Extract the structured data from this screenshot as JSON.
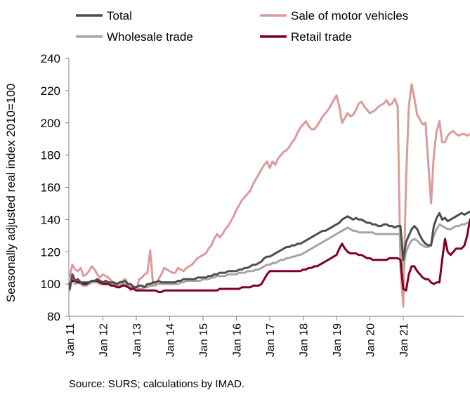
{
  "chart_data": {
    "type": "line",
    "title": "",
    "xlabel": "",
    "ylabel": "Seasonally adjusted real index 2010=100",
    "ylim": [
      80,
      240
    ],
    "yticks": [
      80,
      100,
      120,
      140,
      160,
      180,
      200,
      220,
      240
    ],
    "xticks": [
      "Jan 11",
      "Jan 12",
      "Jan 13",
      "Jan 14",
      "Jan 15",
      "Jan 16",
      "Jan 17",
      "Jan 18",
      "Jan 19",
      "Jan 20",
      "Jan 21"
    ],
    "x_start": "Jan 11",
    "grid": false,
    "legend_position": "top",
    "source": "Source: SURS; calculations by IMAD.",
    "series": [
      {
        "name": "Total",
        "color": "#4d4d4d",
        "values": [
          97,
          106,
          102,
          103,
          101,
          101,
          101,
          101,
          102,
          102,
          103,
          102,
          101,
          102,
          101,
          101,
          101,
          100,
          101,
          101,
          102,
          100,
          100,
          98,
          98,
          99,
          99,
          98,
          100,
          100,
          101,
          101,
          102,
          101,
          101,
          101,
          101,
          101,
          101,
          102,
          102,
          103,
          103,
          103,
          103,
          103,
          104,
          104,
          104,
          104,
          105,
          105,
          106,
          106,
          107,
          107,
          107,
          108,
          108,
          108,
          108,
          109,
          109,
          110,
          110,
          111,
          112,
          112,
          113,
          114,
          116,
          117,
          117,
          118,
          119,
          120,
          121,
          122,
          123,
          123,
          124,
          124,
          125,
          125,
          126,
          127,
          128,
          129,
          130,
          131,
          132,
          133,
          133,
          134,
          135,
          136,
          137,
          138,
          140,
          141,
          142,
          141,
          140,
          141,
          140,
          140,
          139,
          138,
          138,
          137,
          137,
          136,
          136,
          137,
          137,
          136,
          136,
          135,
          136,
          136,
          115,
          126,
          130,
          134,
          136,
          134,
          130,
          127,
          125,
          124,
          124,
          136,
          141,
          144,
          140,
          141,
          139,
          140,
          141,
          142,
          143,
          144,
          143,
          144,
          145,
          145
        ]
      },
      {
        "name": "Sale of motor vehicles",
        "color": "#dc9b9b",
        "values": [
          104,
          112,
          109,
          108,
          110,
          105,
          106,
          108,
          111,
          109,
          106,
          104,
          106,
          105,
          104,
          102,
          100,
          99,
          101,
          102,
          103,
          100,
          96,
          99,
          96,
          103,
          104,
          106,
          107,
          121,
          100,
          99,
          103,
          106,
          110,
          109,
          108,
          107,
          107,
          110,
          109,
          108,
          110,
          111,
          112,
          114,
          116,
          117,
          118,
          119,
          122,
          124,
          128,
          131,
          129,
          131,
          134,
          136,
          139,
          142,
          146,
          149,
          152,
          154,
          156,
          158,
          162,
          165,
          168,
          171,
          174,
          176,
          172,
          176,
          174,
          178,
          180,
          182,
          183,
          185,
          188,
          190,
          194,
          197,
          199,
          201,
          198,
          196,
          196,
          198,
          201,
          204,
          206,
          208,
          211,
          214,
          217,
          210,
          200,
          203,
          206,
          204,
          205,
          208,
          212,
          213,
          210,
          208,
          206,
          207,
          208,
          210,
          211,
          212,
          214,
          211,
          212,
          215,
          210,
          110,
          86,
          165,
          210,
          224,
          215,
          205,
          202,
          199,
          200,
          175,
          150,
          180,
          195,
          201,
          188,
          188,
          192,
          194,
          195,
          193,
          192,
          193,
          193,
          192,
          193,
          194
        ]
      },
      {
        "name": "Wholesale trade",
        "color": "#a6a6a6",
        "values": [
          96,
          103,
          100,
          101,
          100,
          99,
          99,
          100,
          101,
          101,
          101,
          100,
          101,
          101,
          100,
          100,
          100,
          99,
          99,
          100,
          100,
          99,
          98,
          97,
          97,
          97,
          97,
          98,
          98,
          99,
          99,
          100,
          100,
          100,
          100,
          100,
          100,
          100,
          100,
          100,
          101,
          101,
          102,
          102,
          102,
          102,
          102,
          102,
          103,
          103,
          103,
          104,
          104,
          105,
          105,
          105,
          105,
          106,
          106,
          106,
          106,
          107,
          107,
          107,
          108,
          108,
          108,
          109,
          109,
          110,
          111,
          112,
          112,
          113,
          113,
          114,
          115,
          115,
          116,
          116,
          117,
          117,
          118,
          118,
          119,
          120,
          121,
          122,
          123,
          124,
          125,
          126,
          127,
          128,
          129,
          130,
          131,
          132,
          133,
          134,
          135,
          134,
          133,
          133,
          132,
          132,
          132,
          132,
          132,
          132,
          131,
          131,
          131,
          131,
          131,
          131,
          131,
          131,
          131,
          131,
          110,
          120,
          124,
          127,
          128,
          127,
          125,
          124,
          123,
          123,
          124,
          130,
          134,
          137,
          136,
          135,
          134,
          134,
          135,
          136,
          136,
          137,
          137,
          138,
          138,
          138
        ]
      },
      {
        "name": "Retail trade",
        "color": "#800020",
        "values": [
          100,
          102,
          102,
          101,
          101,
          100,
          100,
          101,
          102,
          102,
          102,
          101,
          100,
          100,
          100,
          99,
          99,
          98,
          98,
          99,
          99,
          98,
          97,
          97,
          96,
          96,
          96,
          96,
          96,
          96,
          96,
          96,
          95,
          95,
          96,
          96,
          96,
          96,
          96,
          96,
          96,
          96,
          96,
          96,
          96,
          96,
          96,
          96,
          96,
          96,
          96,
          96,
          96,
          96,
          97,
          97,
          97,
          97,
          97,
          97,
          97,
          97,
          98,
          98,
          98,
          98,
          99,
          99,
          99,
          100,
          103,
          106,
          108,
          108,
          108,
          108,
          108,
          108,
          108,
          108,
          108,
          108,
          108,
          108,
          109,
          109,
          110,
          110,
          111,
          111,
          112,
          113,
          114,
          115,
          116,
          117,
          118,
          122,
          125,
          122,
          120,
          119,
          119,
          119,
          118,
          118,
          117,
          116,
          116,
          115,
          115,
          115,
          115,
          115,
          115,
          116,
          116,
          116,
          116,
          115,
          97,
          96,
          106,
          111,
          111,
          108,
          106,
          104,
          103,
          103,
          101,
          100,
          101,
          101,
          115,
          128,
          120,
          118,
          120,
          122,
          122,
          122,
          124,
          130,
          140,
          140
        ]
      }
    ]
  }
}
